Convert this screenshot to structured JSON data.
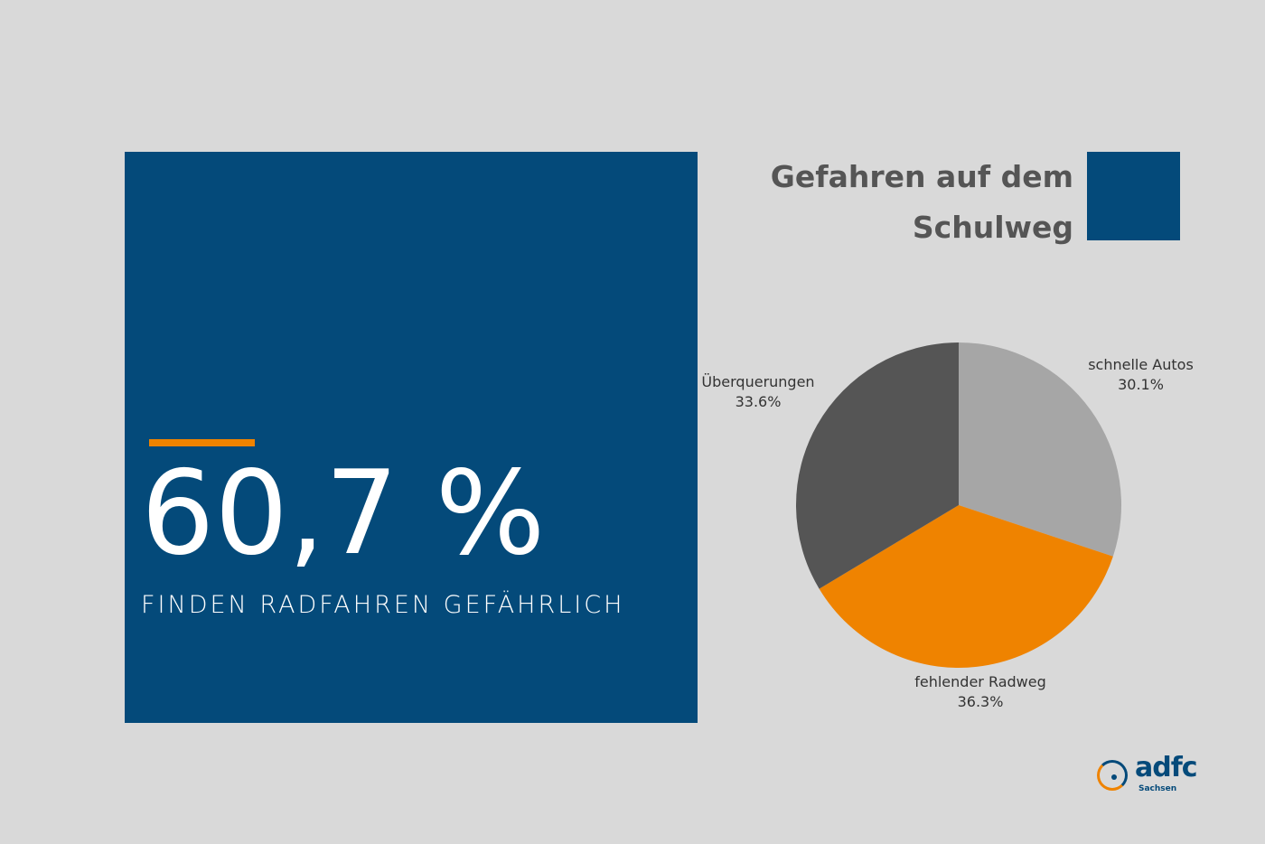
{
  "colors": {
    "background": "#d9d9d9",
    "navy": "#044a7a",
    "orange": "#ef8300",
    "dark_gray": "#555555",
    "light_gray": "#a6a6a6"
  },
  "stat": {
    "value": "60,7 %",
    "caption": "FINDEN RADFAHREN GEFÄHRLICH"
  },
  "chart_data": {
    "type": "pie",
    "title": "Gefahren auf dem Schulweg",
    "slices": [
      {
        "label": "schnelle Autos",
        "value": 30.1,
        "value_label": "30.1%",
        "color": "#a6a6a6"
      },
      {
        "label": "fehlender Radweg",
        "value": 36.3,
        "value_label": "36.3%",
        "color": "#ef8300"
      },
      {
        "label": "Überquerungen",
        "value": 33.6,
        "value_label": "33.6%",
        "color": "#555555"
      }
    ],
    "start_angle_deg": 0,
    "direction": "clockwise"
  },
  "logo": {
    "name": "adfc",
    "subtitle": "Sachsen"
  }
}
